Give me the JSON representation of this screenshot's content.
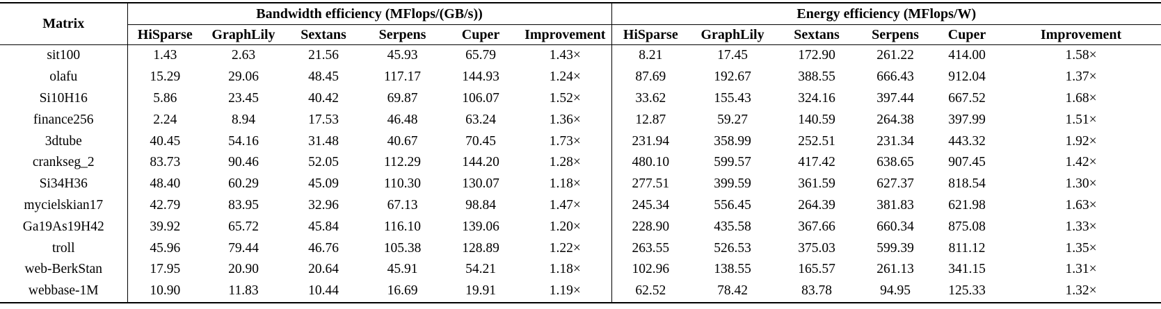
{
  "colors": {
    "background": "#ffffff",
    "text": "#000000",
    "rule": "#000000"
  },
  "chart_data": {
    "type": "table",
    "col1_header": "Matrix",
    "groups": [
      {
        "label": "Bandwidth efficiency (MFlops/(GB/s))",
        "columns": [
          "HiSparse",
          "GraphLily",
          "Sextans",
          "Serpens",
          "Cuper",
          "Improvement"
        ]
      },
      {
        "label": "Energy efficiency (MFlops/W)",
        "columns": [
          "HiSparse",
          "GraphLily",
          "Sextans",
          "Serpens",
          "Cuper",
          "Improvement"
        ]
      }
    ],
    "rows": [
      {
        "matrix": "sit100",
        "bandwidth": [
          "1.43",
          "2.63",
          "21.56",
          "45.93",
          "65.79",
          "1.43×"
        ],
        "energy": [
          "8.21",
          "17.45",
          "172.90",
          "261.22",
          "414.00",
          "1.58×"
        ]
      },
      {
        "matrix": "olafu",
        "bandwidth": [
          "15.29",
          "29.06",
          "48.45",
          "117.17",
          "144.93",
          "1.24×"
        ],
        "energy": [
          "87.69",
          "192.67",
          "388.55",
          "666.43",
          "912.04",
          "1.37×"
        ]
      },
      {
        "matrix": "Si10H16",
        "bandwidth": [
          "5.86",
          "23.45",
          "40.42",
          "69.87",
          "106.07",
          "1.52×"
        ],
        "energy": [
          "33.62",
          "155.43",
          "324.16",
          "397.44",
          "667.52",
          "1.68×"
        ]
      },
      {
        "matrix": "finance256",
        "bandwidth": [
          "2.24",
          "8.94",
          "17.53",
          "46.48",
          "63.24",
          "1.36×"
        ],
        "energy": [
          "12.87",
          "59.27",
          "140.59",
          "264.38",
          "397.99",
          "1.51×"
        ]
      },
      {
        "matrix": "3dtube",
        "bandwidth": [
          "40.45",
          "54.16",
          "31.48",
          "40.67",
          "70.45",
          "1.73×"
        ],
        "energy": [
          "231.94",
          "358.99",
          "252.51",
          "231.34",
          "443.32",
          "1.92×"
        ]
      },
      {
        "matrix": "crankseg_2",
        "bandwidth": [
          "83.73",
          "90.46",
          "52.05",
          "112.29",
          "144.20",
          "1.28×"
        ],
        "energy": [
          "480.10",
          "599.57",
          "417.42",
          "638.65",
          "907.45",
          "1.42×"
        ]
      },
      {
        "matrix": "Si34H36",
        "bandwidth": [
          "48.40",
          "60.29",
          "45.09",
          "110.30",
          "130.07",
          "1.18×"
        ],
        "energy": [
          "277.51",
          "399.59",
          "361.59",
          "627.37",
          "818.54",
          "1.30×"
        ]
      },
      {
        "matrix": "mycielskian17",
        "bandwidth": [
          "42.79",
          "83.95",
          "32.96",
          "67.13",
          "98.84",
          "1.47×"
        ],
        "energy": [
          "245.34",
          "556.45",
          "264.39",
          "381.83",
          "621.98",
          "1.63×"
        ]
      },
      {
        "matrix": "Ga19As19H42",
        "bandwidth": [
          "39.92",
          "65.72",
          "45.84",
          "116.10",
          "139.06",
          "1.20×"
        ],
        "energy": [
          "228.90",
          "435.58",
          "367.66",
          "660.34",
          "875.08",
          "1.33×"
        ]
      },
      {
        "matrix": "troll",
        "bandwidth": [
          "45.96",
          "79.44",
          "46.76",
          "105.38",
          "128.89",
          "1.22×"
        ],
        "energy": [
          "263.55",
          "526.53",
          "375.03",
          "599.39",
          "811.12",
          "1.35×"
        ]
      },
      {
        "matrix": "web-BerkStan",
        "bandwidth": [
          "17.95",
          "20.90",
          "20.64",
          "45.91",
          "54.21",
          "1.18×"
        ],
        "energy": [
          "102.96",
          "138.55",
          "165.57",
          "261.13",
          "341.15",
          "1.31×"
        ]
      },
      {
        "matrix": "webbase-1M",
        "bandwidth": [
          "10.90",
          "11.83",
          "10.44",
          "16.69",
          "19.91",
          "1.19×"
        ],
        "energy": [
          "62.52",
          "78.42",
          "83.78",
          "94.95",
          "125.33",
          "1.32×"
        ]
      }
    ]
  }
}
